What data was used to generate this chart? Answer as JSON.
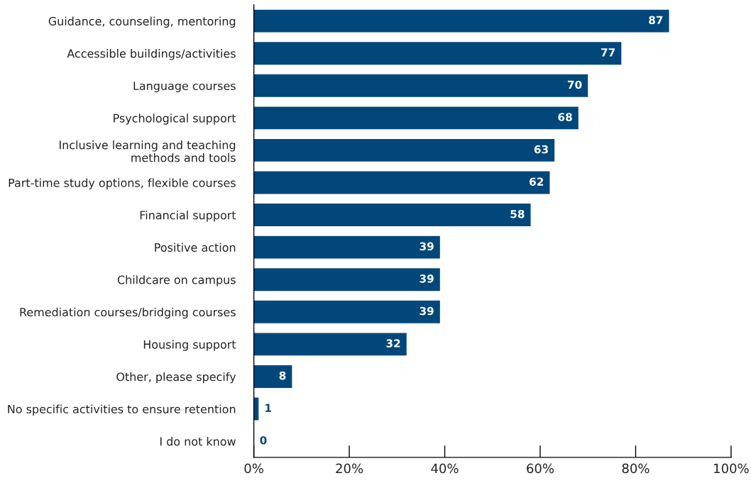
{
  "chart_data": {
    "type": "bar",
    "orientation": "horizontal",
    "categories": [
      "Guidance, counseling, mentoring",
      "Accessible buildings/activities",
      "Language courses",
      "Psychological support",
      "Inclusive learning and teaching\nmethods and tools",
      "Part-time study options, flexible courses",
      "Financial support",
      "Positive action",
      "Childcare on campus",
      "Remediation courses/bridging courses",
      "Housing support",
      "Other, please specify",
      "No specific activities to ensure retention",
      "I do not know"
    ],
    "values": [
      87,
      77,
      70,
      68,
      63,
      62,
      58,
      39,
      39,
      39,
      32,
      8,
      1,
      0
    ],
    "color": "#02477a",
    "data_labels": true,
    "xlim": [
      0,
      100
    ],
    "xticks": [
      {
        "value": 0,
        "label": "0%"
      },
      {
        "value": 20,
        "label": "20%"
      },
      {
        "value": 40,
        "label": "40%"
      },
      {
        "value": 60,
        "label": "60%"
      },
      {
        "value": 80,
        "label": "80%"
      },
      {
        "value": 100,
        "label": "100%"
      }
    ],
    "grid": false,
    "legend": false
  }
}
